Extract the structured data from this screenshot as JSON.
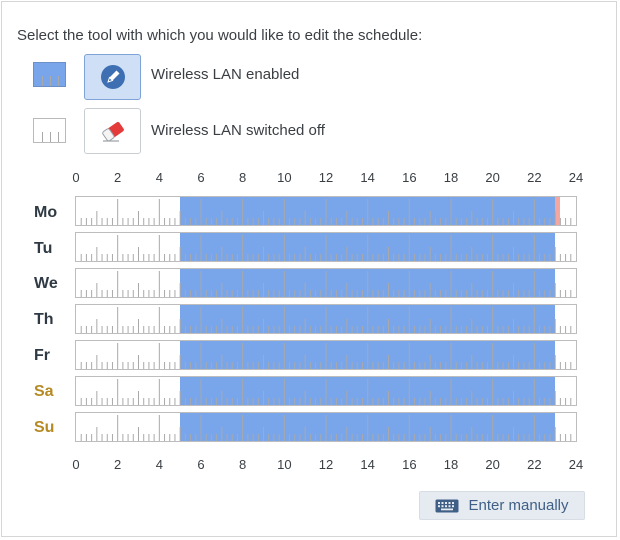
{
  "instruction": "Select the tool with which you would like to edit the schedule:",
  "tools": [
    {
      "label": "Wireless LAN enabled",
      "icon": "pencil-icon",
      "selected": true,
      "swatch": "enabled"
    },
    {
      "label": "Wireless LAN switched off",
      "icon": "eraser-icon",
      "selected": false,
      "swatch": "off"
    }
  ],
  "hours": [
    "0",
    "2",
    "4",
    "6",
    "8",
    "10",
    "12",
    "14",
    "16",
    "18",
    "20",
    "22",
    "24"
  ],
  "days": [
    {
      "label": "Mo",
      "weekend": false,
      "enabled_from": 5,
      "enabled_to": 23,
      "marker": [
        23,
        23.25
      ]
    },
    {
      "label": "Tu",
      "weekend": false,
      "enabled_from": 5,
      "enabled_to": 23
    },
    {
      "label": "We",
      "weekend": false,
      "enabled_from": 5,
      "enabled_to": 23
    },
    {
      "label": "Th",
      "weekend": false,
      "enabled_from": 5,
      "enabled_to": 23
    },
    {
      "label": "Fr",
      "weekend": false,
      "enabled_from": 5,
      "enabled_to": 23
    },
    {
      "label": "Sa",
      "weekend": true,
      "enabled_from": 5,
      "enabled_to": 23
    },
    {
      "label": "Su",
      "weekend": true,
      "enabled_from": 5,
      "enabled_to": 23
    }
  ],
  "colors": {
    "enabled": "#79a5ea",
    "marker": "#f3a7a0",
    "weekend_label": "#b58a22",
    "selected_tool_bg": "#cfdff5"
  },
  "manual_button": {
    "label": "Enter manually",
    "icon": "keyboard-icon"
  }
}
